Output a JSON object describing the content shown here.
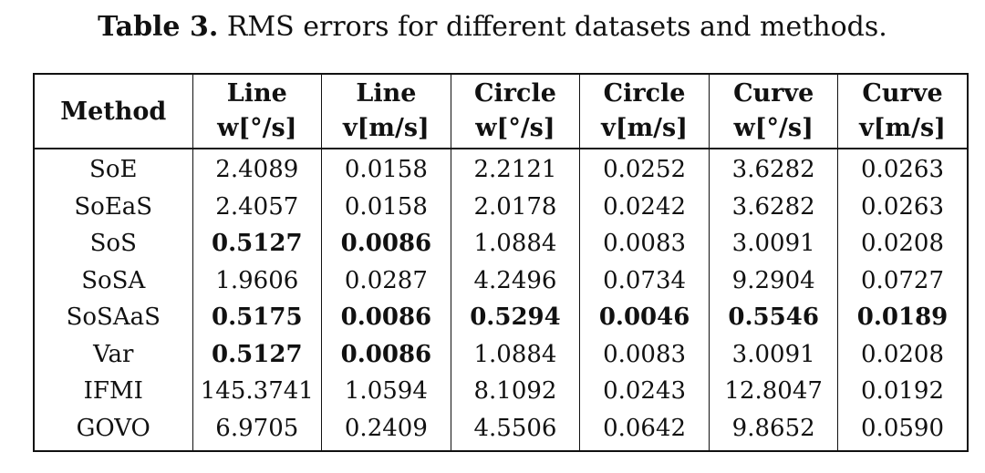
{
  "caption": {
    "label": "Table 3.",
    "text": "RMS errors for different datasets and methods."
  },
  "table": {
    "method_header": "Method",
    "column_groups": [
      "Line",
      "Line",
      "Circle",
      "Circle",
      "Curve",
      "Curve"
    ],
    "column_units": [
      "w[°/s]",
      "v[m/s]",
      "w[°/s]",
      "v[m/s]",
      "w[°/s]",
      "v[m/s]"
    ],
    "rows": [
      {
        "method": "SoE",
        "values": [
          "2.4089",
          "0.0158",
          "2.2121",
          "0.0252",
          "3.6282",
          "0.0263"
        ],
        "bold": [
          false,
          false,
          false,
          false,
          false,
          false
        ]
      },
      {
        "method": "SoEaS",
        "values": [
          "2.4057",
          "0.0158",
          "2.0178",
          "0.0242",
          "3.6282",
          "0.0263"
        ],
        "bold": [
          false,
          false,
          false,
          false,
          false,
          false
        ]
      },
      {
        "method": "SoS",
        "values": [
          "0.5127",
          "0.0086",
          "1.0884",
          "0.0083",
          "3.0091",
          "0.0208"
        ],
        "bold": [
          true,
          true,
          false,
          false,
          false,
          false
        ]
      },
      {
        "method": "SoSA",
        "values": [
          "1.9606",
          "0.0287",
          "4.2496",
          "0.0734",
          "9.2904",
          "0.0727"
        ],
        "bold": [
          false,
          false,
          false,
          false,
          false,
          false
        ]
      },
      {
        "method": "SoSAaS",
        "values": [
          "0.5175",
          "0.0086",
          "0.5294",
          "0.0046",
          "0.5546",
          "0.0189"
        ],
        "bold": [
          true,
          true,
          true,
          true,
          true,
          true
        ]
      },
      {
        "method": "Var",
        "values": [
          "0.5127",
          "0.0086",
          "1.0884",
          "0.0083",
          "3.0091",
          "0.0208"
        ],
        "bold": [
          true,
          true,
          false,
          false,
          false,
          false
        ]
      },
      {
        "method": "IFMI",
        "values": [
          "145.3741",
          "1.0594",
          "8.1092",
          "0.0243",
          "12.8047",
          "0.0192"
        ],
        "bold": [
          false,
          false,
          false,
          false,
          false,
          false
        ]
      },
      {
        "method": "GOVO",
        "values": [
          "6.9705",
          "0.2409",
          "4.5506",
          "0.0642",
          "9.8652",
          "0.0590"
        ],
        "bold": [
          false,
          false,
          false,
          false,
          false,
          false
        ]
      }
    ]
  }
}
